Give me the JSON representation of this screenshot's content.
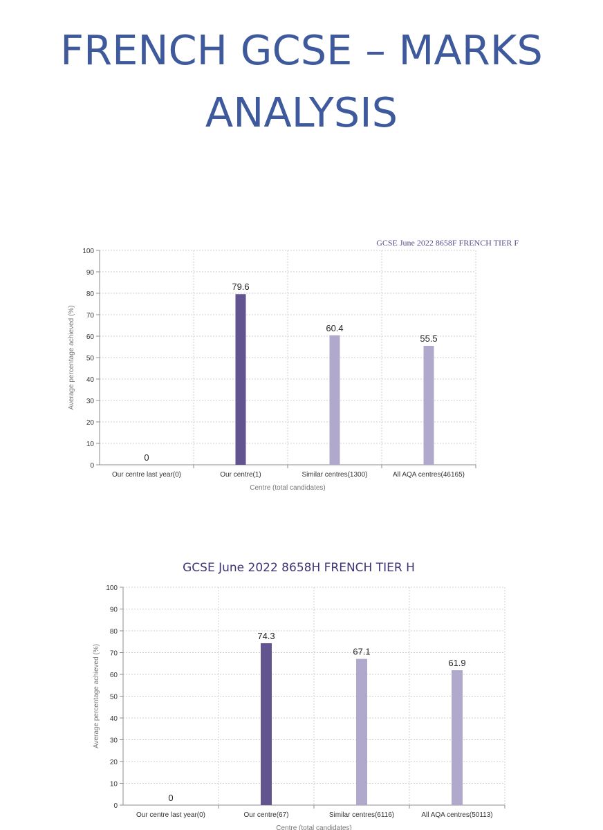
{
  "page": {
    "title": "FRENCH GCSE – MARKS ANALYSIS"
  },
  "colors": {
    "title": "#3f5a9c",
    "bar_ours": "#62548f",
    "bar_other": "#b0a9cb"
  },
  "chart_data": [
    {
      "type": "bar",
      "title": "GCSE June 2022 8658F FRENCH TIER F",
      "xlabel": "Centre (total candidates)",
      "ylabel": "Average percentage achieved (%)",
      "ylim": [
        0,
        100
      ],
      "yticks": [
        "0",
        "10",
        "20",
        "30",
        "40",
        "50",
        "60",
        "70",
        "80",
        "90",
        "100"
      ],
      "categories": [
        "Our centre last year(0)",
        "Our centre(1)",
        "Similar centres(1300)",
        "All AQA centres(46165)"
      ],
      "values": [
        0,
        79.6,
        60.4,
        55.5
      ],
      "value_labels": [
        "0",
        "79.6",
        "60.4",
        "55.5"
      ],
      "grid": true,
      "legend": "none"
    },
    {
      "type": "bar",
      "title": "GCSE June 2022 8658H FRENCH TIER H",
      "xlabel": "Centre (total candidates)",
      "ylabel": "Average percentage achieved (%)",
      "ylim": [
        0,
        100
      ],
      "yticks": [
        "0",
        "10",
        "20",
        "30",
        "40",
        "50",
        "60",
        "70",
        "80",
        "90",
        "100"
      ],
      "categories": [
        "Our centre last year(0)",
        "Our centre(67)",
        "Similar centres(6116)",
        "All AQA centres(50113)"
      ],
      "values": [
        0,
        74.3,
        67.1,
        61.9
      ],
      "value_labels": [
        "0",
        "74.3",
        "67.1",
        "61.9"
      ],
      "grid": true,
      "legend": "none"
    }
  ]
}
